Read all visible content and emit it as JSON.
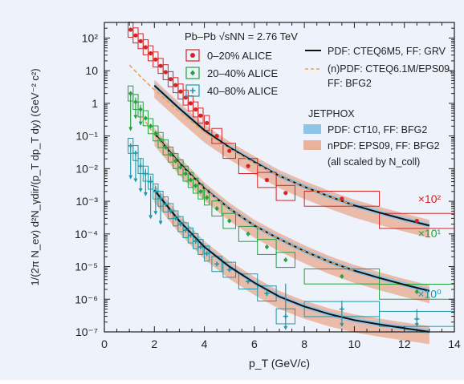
{
  "chart_data": {
    "type": "scatter",
    "title": "",
    "xlabel": "p_T (GeV/c)",
    "ylabel": "1/(2π N_ev) d²N_γdir/(p_T dp_T dy) (GeV⁻² c²)",
    "xlim": [
      0,
      14
    ],
    "ylim": [
      1e-07,
      300
    ],
    "yscale": "log",
    "xticks": [
      "0",
      "2",
      "4",
      "6",
      "8",
      "10",
      "12",
      "14"
    ],
    "yticks": [
      "10²",
      "10",
      "1",
      "10⁻¹",
      "10⁻²",
      "10⁻³",
      "10⁻⁴",
      "10⁻⁵",
      "10⁻⁶",
      "10⁻⁷"
    ],
    "system_label": "Pb–Pb √sNN = 2.76 TeV",
    "jetphox_label": "JETPHOX",
    "legend": {
      "data": [
        {
          "label": "0–20% ALICE",
          "color": "#d42424",
          "marker": "circle"
        },
        {
          "label": "20–40% ALICE",
          "color": "#22a23a",
          "marker": "diamond"
        },
        {
          "label": "40–80% ALICE",
          "color": "#1b9aa8",
          "marker": "plus"
        }
      ],
      "theory": [
        {
          "label": "PDF: CTEQ6M5, FF: GRV",
          "color": "#111111",
          "style": "solid"
        },
        {
          "label": "(n)PDF: CTEQ6.1M/EPS09,",
          "label2": "FF: BFG2",
          "color": "#f0a050",
          "style": "dashed"
        },
        {
          "label": "PDF: CT10, FF: BFG2",
          "color": "#8ec4e8",
          "style": "band"
        },
        {
          "label": "nPDF: EPS09, FF: BFG2",
          "color": "#eab29a",
          "style": "band"
        }
      ],
      "note": "(all scaled by N_coll)"
    },
    "scale_labels": [
      "×10²",
      "×10¹",
      "×10⁰"
    ],
    "series": [
      {
        "name": "0–20% ALICE",
        "scale": "×10²",
        "color": "#d42424",
        "points": [
          {
            "x": 1.05,
            "y": 180
          },
          {
            "x": 1.25,
            "y": 120
          },
          {
            "x": 1.45,
            "y": 80
          },
          {
            "x": 1.65,
            "y": 52
          },
          {
            "x": 1.85,
            "y": 34
          },
          {
            "x": 2.05,
            "y": 22
          },
          {
            "x": 2.25,
            "y": 14
          },
          {
            "x": 2.45,
            "y": 9
          },
          {
            "x": 2.65,
            "y": 5.5
          },
          {
            "x": 2.85,
            "y": 3.6
          },
          {
            "x": 3.05,
            "y": 2.3
          },
          {
            "x": 3.25,
            "y": 1.5
          },
          {
            "x": 3.45,
            "y": 1.0
          },
          {
            "x": 3.65,
            "y": 0.65
          },
          {
            "x": 3.85,
            "y": 0.42
          },
          {
            "x": 4.1,
            "y": 0.25
          },
          {
            "x": 4.5,
            "y": 0.1
          },
          {
            "x": 5.0,
            "y": 0.035
          },
          {
            "x": 5.75,
            "y": 0.012
          },
          {
            "x": 6.5,
            "y": 0.0045
          },
          {
            "x": 7.25,
            "y": 0.0018
          },
          {
            "x": 9.5,
            "y": 0.0012
          },
          {
            "x": 12.5,
            "y": 0.00025
          }
        ]
      },
      {
        "name": "20–40% ALICE",
        "scale": "×10¹",
        "color": "#22a23a",
        "points": [
          {
            "x": 1.05,
            "y": 2.0
          },
          {
            "x": 1.25,
            "y": 1.1
          },
          {
            "x": 1.45,
            "y": 0.65
          },
          {
            "x": 1.65,
            "y": 0.35
          },
          {
            "x": 1.85,
            "y": 0.2
          },
          {
            "x": 2.05,
            "y": 0.12
          },
          {
            "x": 2.25,
            "y": 0.075
          },
          {
            "x": 2.45,
            "y": 0.045
          },
          {
            "x": 2.65,
            "y": 0.027
          },
          {
            "x": 2.85,
            "y": 0.017
          },
          {
            "x": 3.05,
            "y": 0.011
          },
          {
            "x": 3.25,
            "y": 0.007
          },
          {
            "x": 3.45,
            "y": 0.0045
          },
          {
            "x": 3.65,
            "y": 0.003
          },
          {
            "x": 3.85,
            "y": 0.002
          },
          {
            "x": 4.1,
            "y": 0.0013
          },
          {
            "x": 4.5,
            "y": 0.0006
          },
          {
            "x": 5.0,
            "y": 0.00025
          },
          {
            "x": 5.75,
            "y": 0.0001
          },
          {
            "x": 6.5,
            "y": 4e-05
          },
          {
            "x": 7.25,
            "y": 1.6e-05
          },
          {
            "x": 9.5,
            "y": 5e-06
          },
          {
            "x": 12.5,
            "y": 1.7e-06
          }
        ]
      },
      {
        "name": "40–80% ALICE",
        "scale": "×10⁰",
        "color": "#1b9aa8",
        "points": [
          {
            "x": 1.05,
            "y": 0.05
          },
          {
            "x": 1.25,
            "y": 0.03
          },
          {
            "x": 1.45,
            "y": 0.012
          },
          {
            "x": 1.65,
            "y": 0.007
          },
          {
            "x": 1.85,
            "y": 0.004
          },
          {
            "x": 2.05,
            "y": 0.002
          },
          {
            "x": 2.25,
            "y": 0.0012
          },
          {
            "x": 2.45,
            "y": 0.0008
          },
          {
            "x": 2.65,
            "y": 0.0005
          },
          {
            "x": 2.85,
            "y": 0.0003
          },
          {
            "x": 3.05,
            "y": 0.0002
          },
          {
            "x": 3.25,
            "y": 0.00013
          },
          {
            "x": 3.45,
            "y": 9e-05
          },
          {
            "x": 3.65,
            "y": 6e-05
          },
          {
            "x": 3.85,
            "y": 4e-05
          },
          {
            "x": 4.1,
            "y": 2.5e-05
          },
          {
            "x": 4.5,
            "y": 1.2e-05
          },
          {
            "x": 5.0,
            "y": 8e-06
          },
          {
            "x": 5.75,
            "y": 3.5e-06
          },
          {
            "x": 6.5,
            "y": 1.5e-06
          },
          {
            "x": 7.25,
            "y": 3e-07
          },
          {
            "x": 9.5,
            "y": 5e-07
          },
          {
            "x": 12.5,
            "y": 2.5e-07
          }
        ]
      }
    ],
    "theory_curves": [
      {
        "name": "0–20% JETPHOX",
        "x": [
          2,
          3,
          4,
          5,
          6,
          7,
          8,
          9,
          10,
          11,
          12,
          13
        ],
        "y": [
          3.5,
          0.7,
          0.15,
          0.045,
          0.016,
          0.006,
          0.0028,
          0.0014,
          0.00075,
          0.00045,
          0.00028,
          0.00018
        ]
      },
      {
        "name": "20–40% JETPHOX",
        "x": [
          2,
          3,
          4,
          5,
          6,
          7,
          8,
          9,
          10,
          11,
          12,
          13
        ],
        "y": [
          0.12,
          0.015,
          0.0025,
          0.0006,
          0.00018,
          7e-05,
          3e-05,
          1.4e-05,
          7.5e-06,
          4.5e-06,
          2.8e-06,
          1.8e-06
        ]
      },
      {
        "name": "40–80% JETPHOX",
        "x": [
          2,
          3,
          4,
          5,
          6,
          7,
          8,
          9,
          10,
          11,
          12,
          13
        ],
        "y": [
          0.0022,
          0.00025,
          4e-05,
          1e-05,
          3.2e-06,
          1.2e-06,
          6e-07,
          3.5e-07,
          2.3e-07,
          1.7e-07,
          1.3e-07,
          1e-07
        ]
      }
    ]
  }
}
